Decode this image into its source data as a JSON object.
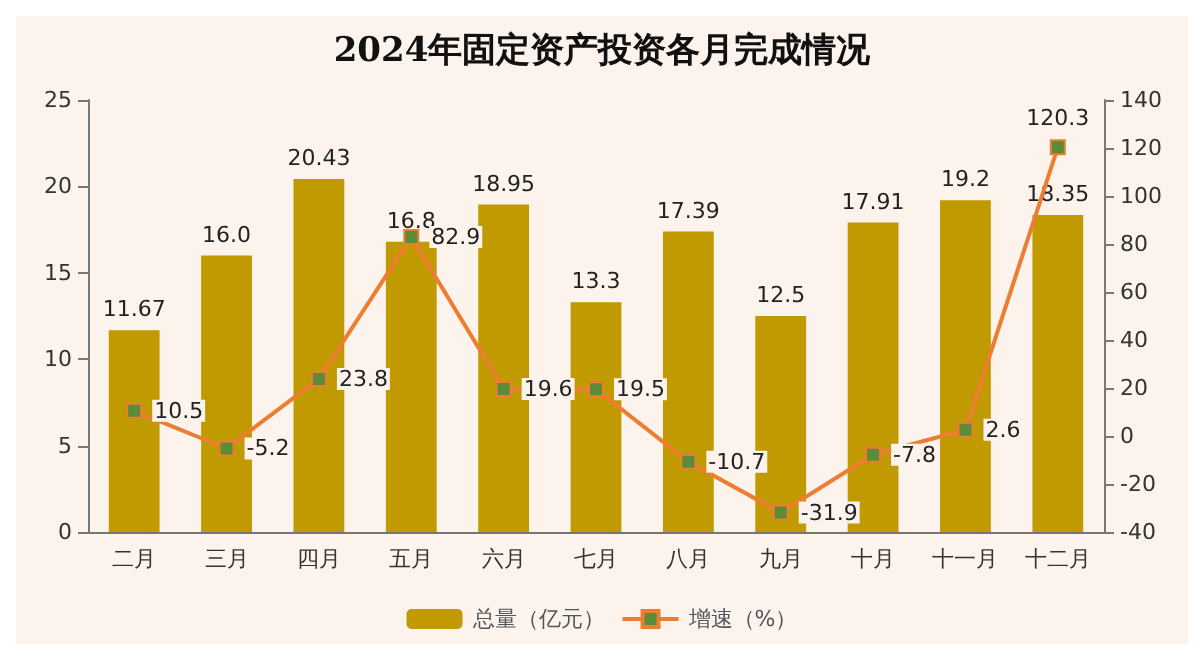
{
  "chart_data": {
    "type": "bar",
    "title": "2024年固定资产投资各月完成情况",
    "categories": [
      "二月",
      "三月",
      "四月",
      "五月",
      "六月",
      "七月",
      "八月",
      "九月",
      "十月",
      "十一月",
      "十二月"
    ],
    "series": [
      {
        "name": "总量（亿元）",
        "color": "#c09a00",
        "values": [
          11.67,
          16.0,
          20.43,
          16.8,
          18.95,
          13.3,
          17.39,
          12.5,
          17.91,
          19.2,
          18.35
        ],
        "value_labels": [
          "11.67",
          "16.0",
          "20.43",
          "16.8",
          "18.95",
          "13.3",
          "17.39",
          "12.5",
          "17.91",
          "19.2",
          "18.35"
        ]
      },
      {
        "name": "增速（%）",
        "type": "line",
        "axis": "y2",
        "color": "#ed7d31",
        "values": [
          10.5,
          -5.2,
          23.8,
          82.9,
          19.6,
          19.5,
          -10.7,
          -31.9,
          -7.8,
          2.6,
          120.3
        ]
      }
    ],
    "data_labels": true,
    "marker": "square",
    "legend": "bottom",
    "grid": false,
    "ylim": [
      0,
      25
    ],
    "yticks": [
      0,
      5,
      10,
      15,
      20,
      25
    ],
    "y2lim": [
      -40,
      140
    ],
    "y2ticks": [
      -40,
      -20,
      0,
      20,
      40,
      60,
      80,
      100,
      120,
      140
    ]
  }
}
